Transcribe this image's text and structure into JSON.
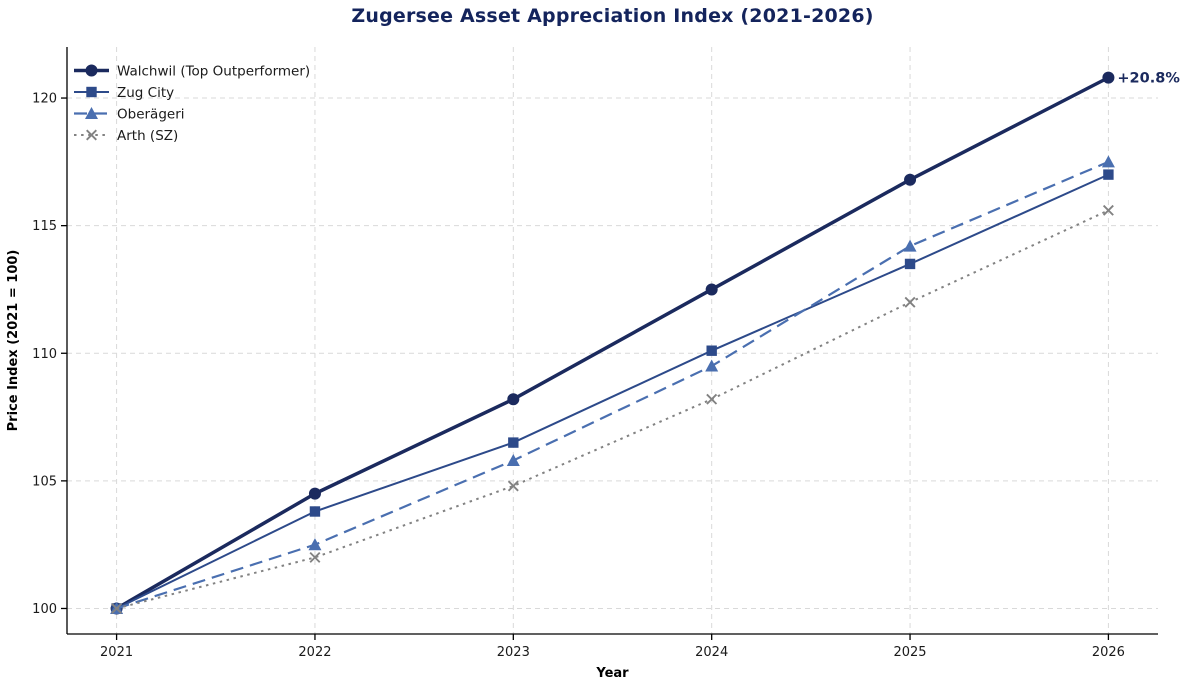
{
  "chart_data": {
    "type": "line",
    "title": "Zugersee Asset Appreciation Index (2021-2026)",
    "xlabel": "Year",
    "ylabel": "Price Index (2021 = 100)",
    "x": [
      2021,
      2022,
      2023,
      2024,
      2025,
      2026
    ],
    "xticks": [
      "2021",
      "2022",
      "2023",
      "2024",
      "2025",
      "2026"
    ],
    "yticks": [
      100,
      105,
      110,
      115,
      120
    ],
    "xlim": [
      2020.75,
      2026.25
    ],
    "ylim": [
      99,
      122
    ],
    "grid": true,
    "grid_style": "dashed",
    "legend_position": "upper-left",
    "series": [
      {
        "name": "Walchwil (Top Outperformer)",
        "values": [
          100,
          104.5,
          108.2,
          112.5,
          116.8,
          120.8
        ],
        "color": "#1b2a5e",
        "line_style": "solid",
        "line_width": 3.5,
        "marker": "circle"
      },
      {
        "name": "Zug City",
        "values": [
          100,
          103.8,
          106.5,
          110.1,
          113.5,
          117.0
        ],
        "color": "#2d4a8a",
        "line_style": "solid",
        "line_width": 2,
        "marker": "square"
      },
      {
        "name": "Oberägeri",
        "values": [
          100,
          102.5,
          105.8,
          109.5,
          114.2,
          117.5
        ],
        "color": "#4a6fb0",
        "line_style": "dashed",
        "line_width": 2.2,
        "marker": "triangle"
      },
      {
        "name": "Arth (SZ)",
        "values": [
          100,
          102.0,
          104.8,
          108.2,
          112.0,
          115.6
        ],
        "color": "#828282",
        "line_style": "dotted",
        "line_width": 2,
        "marker": "x"
      }
    ],
    "annotation": {
      "text": "+20.8%",
      "x": 2026,
      "y": 120.8,
      "color": "#1b2a5e"
    },
    "colors": {
      "title": "#14245c",
      "grid": "#d9d9d9",
      "axis": "#000000",
      "tick_label": "#1a1a1a"
    }
  }
}
